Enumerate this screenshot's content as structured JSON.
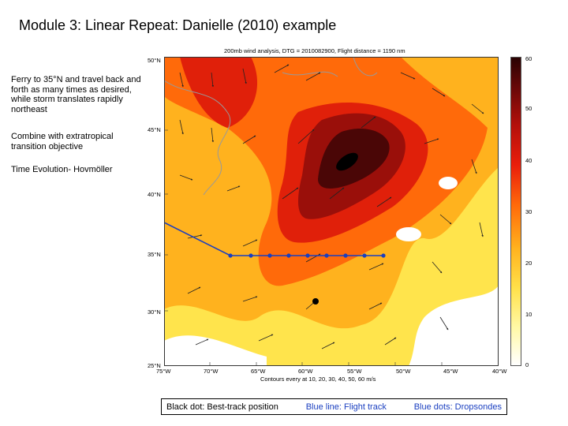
{
  "slide": {
    "title": "Module 3:  Linear Repeat: Danielle (2010) example",
    "bullets": [
      "Ferry to 35°N and travel back and forth as many times as desired, while storm translates rapidly northeast",
      "Combine with extratropical transition objective",
      "Time Evolution- Hovmöller"
    ]
  },
  "figure": {
    "title": "200mb wind analysis, DTG = 2010082900, Flight distance = 1190 nm",
    "caption": "Contours every at 10, 20, 30, 40, 50, 60 m/s",
    "lat_labels": [
      "50°N",
      "45°N",
      "40°N",
      "35°N",
      "30°N",
      "25°N"
    ],
    "lon_labels": [
      "75°W",
      "70°W",
      "65°W",
      "60°W",
      "55°W",
      "50°W",
      "45°W",
      "40°W"
    ],
    "colorbar_ticks": [
      "60",
      "50",
      "40",
      "30",
      "20",
      "10",
      "0"
    ]
  },
  "legend": {
    "black_dot": "Black dot: Best-track position",
    "blue_line": "Blue line: Flight track",
    "blue_dots": "Blue dots: Dropsondes"
  },
  "colors": {
    "track": "#1a3fc0",
    "wind_low": "#ffffff",
    "wind_high": "#2a0303"
  }
}
